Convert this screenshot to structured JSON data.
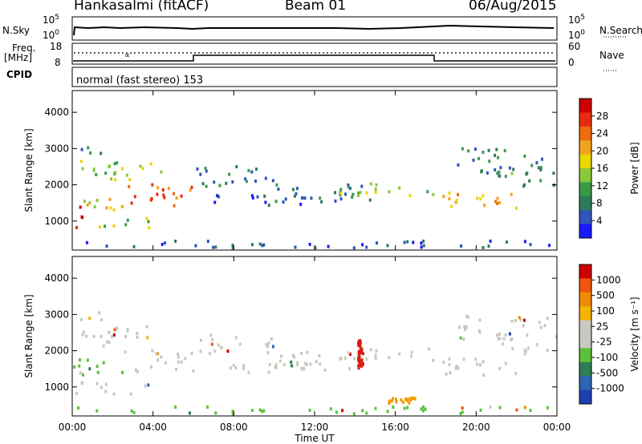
{
  "header": {
    "station": "Hankasalmi (fitACF)",
    "beam": "Beam 01",
    "date": "06/Aug/2015"
  },
  "side_labels": {
    "nsky": "N.Sky",
    "freq_top": "Freq.",
    "freq_unit": "[MHz]",
    "cpid": "CPID",
    "nsearch": "N.Search",
    "nave": "Nave"
  },
  "aux_axes": {
    "nsky_ticks": [
      "10^5",
      "10^0"
    ],
    "nsearch_ticks": [
      "10^5",
      "10^0"
    ],
    "freq_ticks": [
      "18",
      "8"
    ],
    "nave_ticks": [
      "60",
      "0"
    ]
  },
  "cpid_text": "normal (fast stereo) 153",
  "colors": {
    "power_scale": [
      "#1a1aff",
      "#2f56b8",
      "#2e7b5a",
      "#3a9a4a",
      "#8ac83c",
      "#e8d800",
      "#f2a21b",
      "#f06a10",
      "#e82b10",
      "#cc0000"
    ],
    "velocity_scale": [
      "#1f3fb0",
      "#2d64b5",
      "#2e7d55",
      "#5cc03a",
      "#c8c8c0",
      "#c8c8c0",
      "#f4b400",
      "#f08a00",
      "#f0560f",
      "#cc0000"
    ]
  },
  "chart_data": [
    {
      "type": "heatmap",
      "title": "",
      "xlabel": "Time UT",
      "ylabel": "Slant Range [km]",
      "colorbar_label": "Power [dB]",
      "x_ticks": [
        "00:00",
        "04:00",
        "08:00",
        "12:00",
        "16:00",
        "20:00",
        "00:00"
      ],
      "y_ticks": [
        "1000",
        "2000",
        "3000",
        "4000"
      ],
      "colorbar_ticks": [
        "4",
        "8",
        "12",
        "16",
        "20",
        "24",
        "28"
      ],
      "ylim": [
        200,
        4600
      ],
      "xlim_hours": [
        0,
        24
      ],
      "grid": false
    },
    {
      "type": "heatmap",
      "title": "",
      "xlabel": "Time UT",
      "ylabel": "Slant Range [km]",
      "colorbar_label": "Velocity [m s^-1]",
      "x_ticks": [
        "00:00",
        "04:00",
        "08:00",
        "12:00",
        "16:00",
        "20:00",
        "00:00"
      ],
      "y_ticks": [
        "1000",
        "2000",
        "3000",
        "4000"
      ],
      "colorbar_ticks": [
        "1000",
        "500",
        "100",
        "25",
        "-25",
        "-100",
        "-500",
        "-1000"
      ],
      "ylim": [
        200,
        4600
      ],
      "xlim_hours": [
        0,
        24
      ],
      "grid": false
    }
  ]
}
